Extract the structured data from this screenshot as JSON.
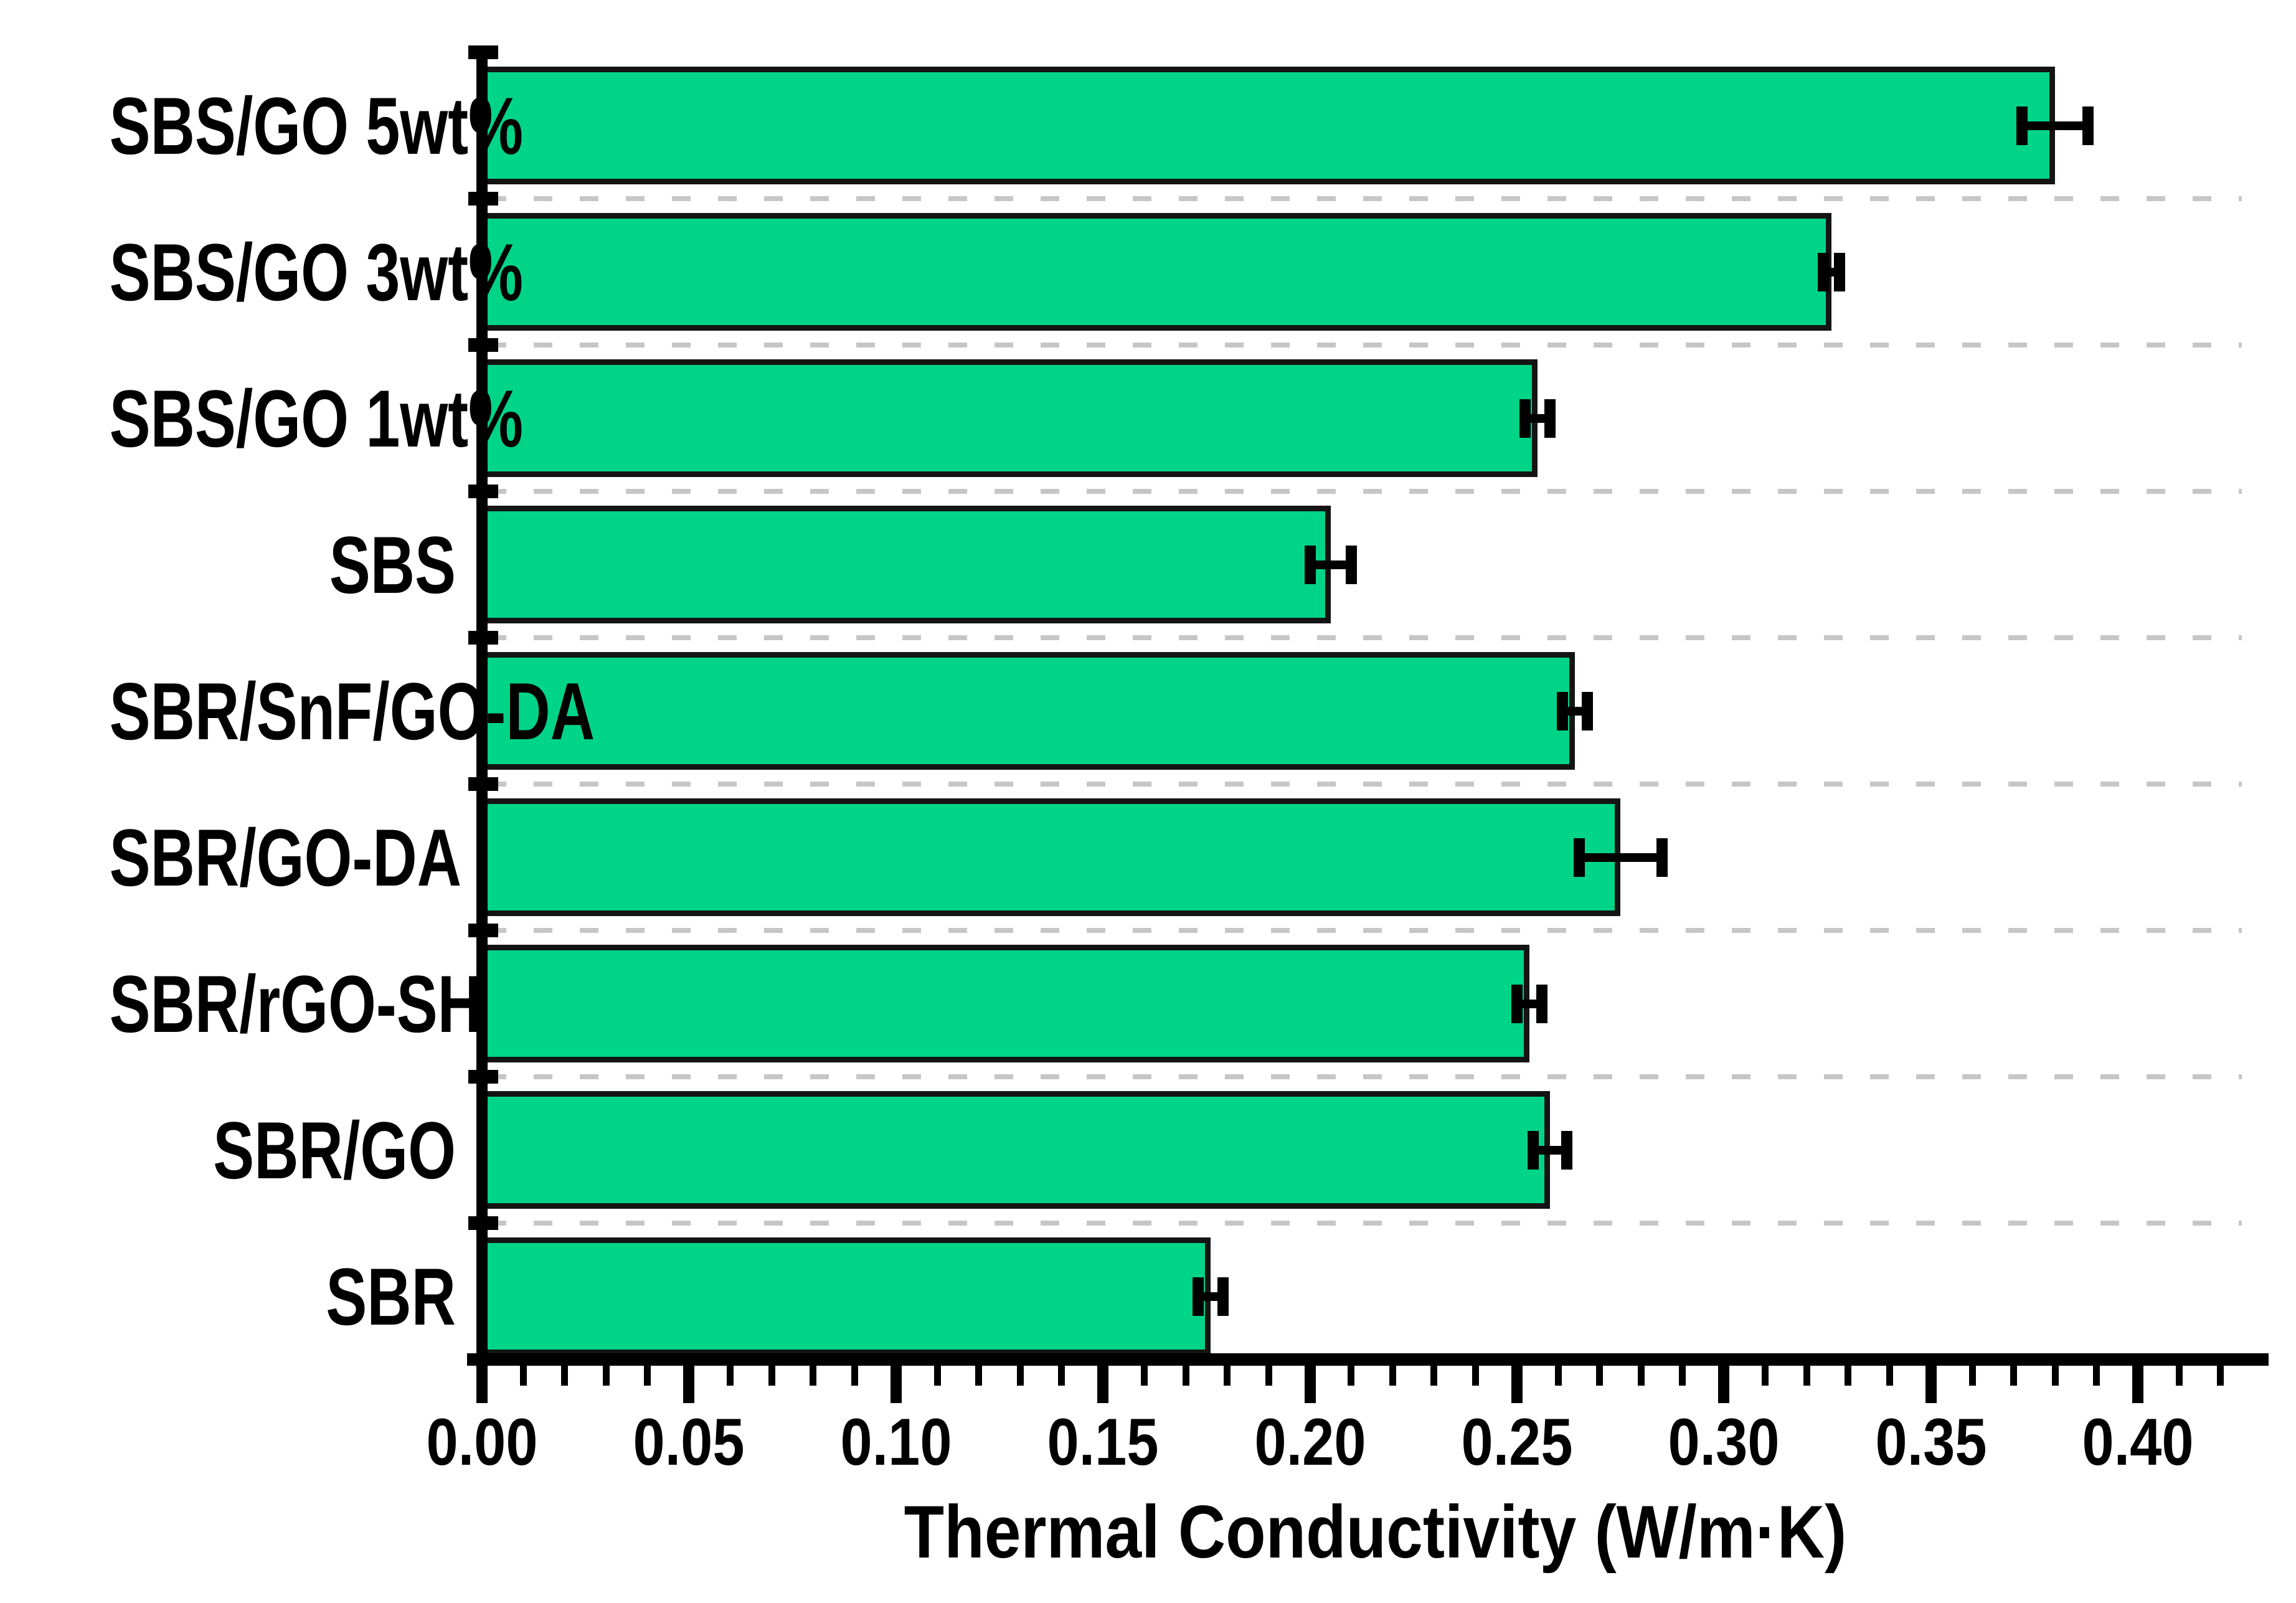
{
  "chart_data": {
    "type": "bar",
    "orientation": "horizontal",
    "title": "",
    "xlabel": "Thermal Conductivity (W/m·K)",
    "ylabel": "",
    "categories": [
      "SBS/GO 5wt%",
      "SBS/GO 3wt%",
      "SBS/GO 1wt%",
      "SBS",
      "SBR/SnF/GO-DA",
      "SBR/GO-DA",
      "SBR/rGO-SH",
      "SBR/GO",
      "SBR"
    ],
    "values": [
      0.38,
      0.326,
      0.255,
      0.205,
      0.264,
      0.275,
      0.253,
      0.258,
      0.176
    ],
    "errors": [
      0.008,
      0.002,
      0.003,
      0.005,
      0.003,
      0.01,
      0.003,
      0.004,
      0.003
    ],
    "xlim": [
      0.0,
      0.432
    ],
    "x_major_tick_step": 0.05,
    "x_minor_tick_step": 0.01,
    "x_tick_labels": [
      "0.00",
      "0.05",
      "0.10",
      "0.15",
      "0.20",
      "0.25",
      "0.30",
      "0.35",
      "0.40"
    ],
    "grid": "dashed horizontal separators between category rows",
    "legend": "none",
    "bar_fill_color": "#00d489",
    "bar_edge_color": "#141414",
    "error_bar_color": "#000000",
    "axis_color": "#000000",
    "gridline_color": "#c6c6c6",
    "background_color": "#ffffff",
    "text_color": "#000000"
  }
}
